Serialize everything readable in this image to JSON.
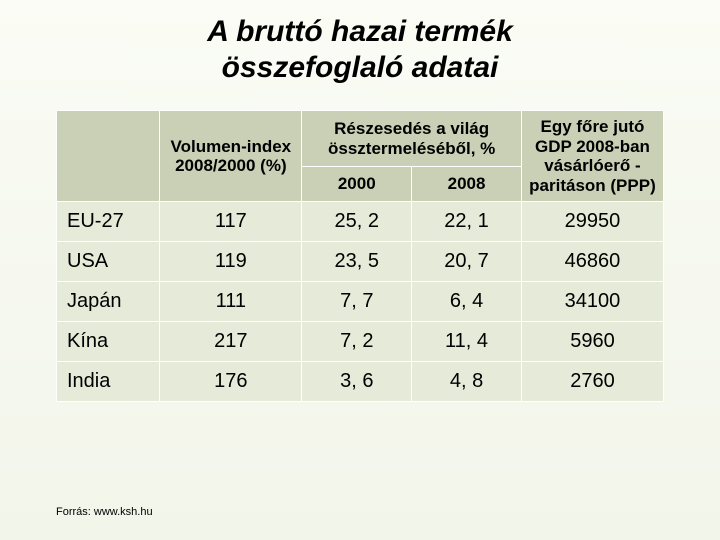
{
  "title_line1": "A bruttó hazai termék",
  "title_line2": "összefoglaló adatai",
  "headers": {
    "blank": "",
    "volumen": "Volumen-index 2008/2000 (%)",
    "reszesedes_top": "Részesedés a világ össztermeléséből, %",
    "y2000": "2000",
    "y2008": "2008",
    "egyfore": "Egy főre jutó GDP 2008-ban vásárlóerő -paritáson (PPP)"
  },
  "rows": [
    {
      "label": "EU-27",
      "vol": "117",
      "s2000": "25, 2",
      "s2008": "22, 1",
      "gdp": "29950"
    },
    {
      "label": "USA",
      "vol": "119",
      "s2000": "23, 5",
      "s2008": "20, 7",
      "gdp": "46860"
    },
    {
      "label": "Japán",
      "vol": "111",
      "s2000": "7, 7",
      "s2008": "6, 4",
      "gdp": "34100"
    },
    {
      "label": "Kína",
      "vol": "217",
      "s2000": "7, 2",
      "s2008": "11, 4",
      "gdp": "5960"
    },
    {
      "label": "India",
      "vol": "176",
      "s2000": "3, 6",
      "s2008": "4, 8",
      "gdp": "2760"
    }
  ],
  "source": "Forrás: www.ksh.hu",
  "colors": {
    "header_bg": "#c9d0b6",
    "cell_bg": "#e6ead9",
    "border": "#ffffff",
    "page_bg_top": "#fafcf5",
    "page_bg_bottom": "#f2f5ea"
  }
}
